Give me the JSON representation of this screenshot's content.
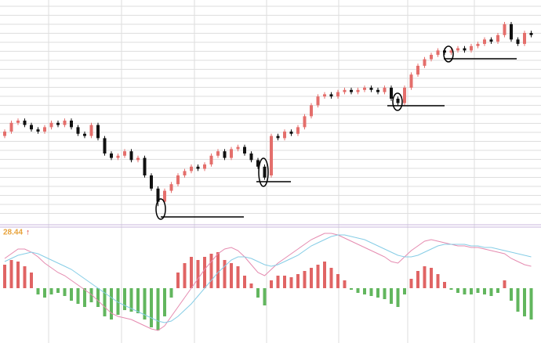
{
  "chart_data": [
    {
      "type": "candlestick",
      "ylim": [
        0,
        100
      ],
      "up_color": "#e46f6c",
      "down_color": "#111111",
      "open": [
        38,
        40,
        44,
        45,
        43,
        41,
        40,
        42,
        44,
        43,
        45,
        42,
        39,
        38,
        43,
        37,
        30,
        28,
        29,
        31,
        27,
        28,
        20,
        14,
        8,
        13,
        16,
        20,
        22,
        24,
        23,
        25,
        29,
        31,
        28,
        32,
        33,
        30,
        27,
        24,
        20,
        38,
        37,
        40,
        39,
        42,
        47,
        52,
        56,
        57,
        56,
        58,
        59,
        58,
        59,
        60,
        59,
        58,
        60,
        55,
        53,
        60,
        66,
        70,
        73,
        75,
        77,
        76,
        77,
        78,
        77,
        79,
        80,
        82,
        81,
        84,
        89,
        82,
        80,
        85
      ],
      "high": [
        41,
        45,
        46,
        46,
        44,
        42,
        43,
        45,
        45,
        46,
        46,
        43,
        40,
        44,
        44,
        38,
        31,
        30,
        32,
        32,
        29,
        29,
        21,
        15,
        14,
        17,
        21,
        23,
        25,
        25,
        26,
        30,
        32,
        32,
        33,
        34,
        34,
        31,
        28,
        25,
        39,
        39,
        41,
        41,
        43,
        48,
        53,
        57,
        58,
        58,
        59,
        60,
        60,
        60,
        61,
        61,
        60,
        61,
        61,
        56,
        61,
        67,
        71,
        74,
        76,
        78,
        78,
        78,
        79,
        79,
        80,
        81,
        83,
        83,
        85,
        90,
        90,
        83,
        86,
        86
      ],
      "low": [
        37,
        39,
        43,
        42,
        40,
        39,
        39,
        41,
        42,
        42,
        41,
        38,
        37,
        37,
        36,
        29,
        27,
        27,
        28,
        26,
        26,
        19,
        13,
        6,
        7,
        12,
        15,
        19,
        21,
        22,
        22,
        24,
        28,
        27,
        27,
        31,
        29,
        26,
        23,
        18,
        19,
        36,
        36,
        38,
        38,
        41,
        46,
        51,
        55,
        55,
        55,
        57,
        57,
        57,
        58,
        58,
        57,
        57,
        54,
        52,
        52,
        59,
        65,
        69,
        72,
        74,
        75,
        75,
        76,
        76,
        76,
        78,
        79,
        80,
        80,
        83,
        81,
        79,
        79,
        83
      ],
      "close": [
        40,
        44,
        45,
        43,
        41,
        40,
        42,
        44,
        43,
        45,
        42,
        39,
        38,
        43,
        37,
        30,
        28,
        29,
        31,
        27,
        28,
        20,
        14,
        8,
        13,
        16,
        20,
        22,
        24,
        23,
        25,
        29,
        31,
        28,
        32,
        33,
        30,
        27,
        24,
        19,
        38,
        37,
        40,
        39,
        42,
        47,
        52,
        56,
        57,
        56,
        58,
        59,
        58,
        59,
        60,
        59,
        58,
        60,
        55,
        53,
        60,
        66,
        70,
        73,
        75,
        77,
        76,
        77,
        78,
        77,
        79,
        80,
        82,
        81,
        84,
        89,
        82,
        80,
        85,
        84
      ]
    },
    {
      "type": "macd",
      "ylim": [
        -35,
        35
      ],
      "label": "28.44",
      "arrow": "↑",
      "label_color": "#e8a33c",
      "arrow_color": "#d9342b",
      "up_color": "#e06464",
      "down_color": "#62b65e",
      "values": [
        15,
        18,
        17,
        14,
        10,
        -4,
        -6,
        -4,
        -3,
        -5,
        -8,
        -10,
        -12,
        -9,
        -12,
        -18,
        -20,
        -17,
        -14,
        -15,
        -16,
        -20,
        -25,
        -27,
        -18,
        -6,
        10,
        16,
        20,
        18,
        20,
        22,
        23,
        18,
        16,
        14,
        8,
        3,
        -6,
        -11,
        5,
        8,
        8,
        7,
        9,
        11,
        13,
        15,
        17,
        13,
        9,
        5,
        -1,
        -3,
        -4,
        -5,
        -6,
        -7,
        -10,
        -12,
        -4,
        6,
        11,
        14,
        13,
        9,
        4,
        -1,
        -3,
        -4,
        -4,
        -3,
        -4,
        -5,
        -3,
        5,
        -8,
        -15,
        -18,
        -20
      ],
      "series": [
        {
          "color": "#e58bb0",
          "values": [
            19,
            22,
            25,
            25,
            23,
            20,
            16,
            13,
            10,
            8,
            5,
            2,
            -1,
            -4,
            -8,
            -12,
            -16,
            -18,
            -19,
            -20,
            -22,
            -24,
            -26,
            -27,
            -24,
            -18,
            -12,
            -6,
            0,
            6,
            12,
            17,
            22,
            25,
            26,
            24,
            20,
            15,
            10,
            8,
            12,
            16,
            19,
            22,
            25,
            28,
            31,
            33,
            35,
            35,
            34,
            32,
            30,
            28,
            26,
            24,
            22,
            20,
            17,
            16,
            20,
            24,
            27,
            30,
            31,
            30,
            29,
            28,
            27,
            27,
            26,
            26,
            25,
            24,
            23,
            22,
            19,
            17,
            15,
            14
          ]
        },
        {
          "color": "#86cde6",
          "values": [
            17,
            19,
            21,
            22,
            23,
            22,
            20,
            18,
            16,
            14,
            12,
            9,
            6,
            3,
            0,
            -3,
            -6,
            -9,
            -11,
            -13,
            -15,
            -17,
            -19,
            -21,
            -22,
            -21,
            -18,
            -14,
            -10,
            -5,
            0,
            5,
            10,
            14,
            18,
            20,
            20,
            19,
            17,
            15,
            14,
            15,
            17,
            19,
            21,
            24,
            27,
            29,
            31,
            33,
            34,
            34,
            33,
            32,
            31,
            29,
            27,
            25,
            23,
            21,
            20,
            20,
            21,
            23,
            25,
            27,
            28,
            28,
            28,
            28,
            27,
            27,
            26,
            26,
            25,
            24,
            23,
            22,
            21,
            20
          ]
        }
      ]
    }
  ]
}
